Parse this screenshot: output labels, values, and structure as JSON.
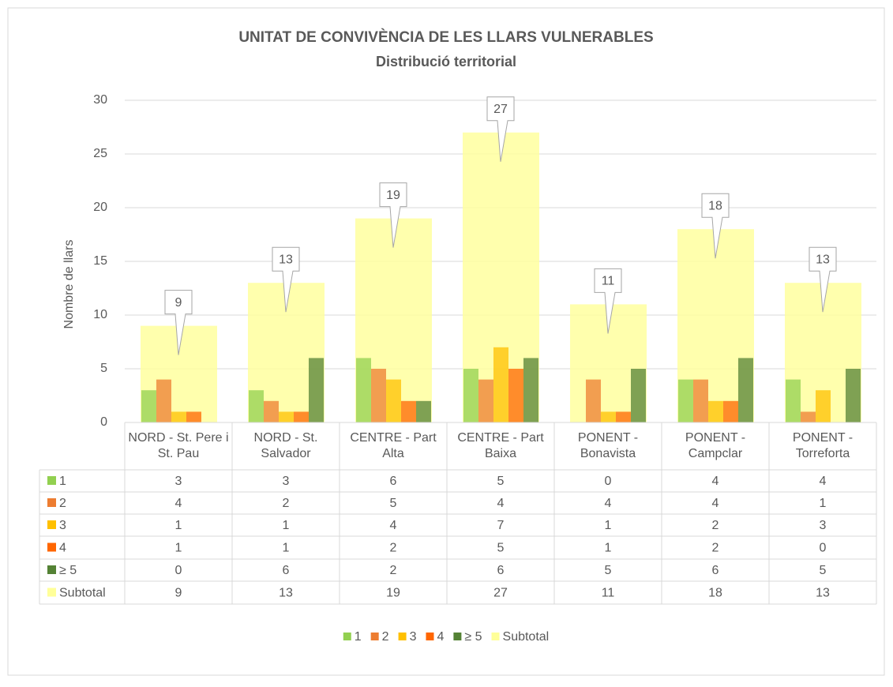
{
  "chart_data": {
    "type": "bar",
    "title": "UNITAT DE CONVIVÈNCIA DE LES LLARS VULNERABLES",
    "subtitle": "Distribució territorial",
    "y_label": "Nombre de llars",
    "categories": [
      "NORD - St. Pere i St. Pau",
      "NORD - St. Salvador",
      "CENTRE - Part Alta",
      "CENTRE - Part Baixa",
      "PONENT - Bonavista",
      "PONENT - Campclar",
      "PONENT - Torreforta"
    ],
    "series": [
      {
        "name": "1",
        "color": "#92d050",
        "values": [
          3,
          3,
          6,
          5,
          0,
          4,
          4
        ]
      },
      {
        "name": "2",
        "color": "#ed7d31",
        "values": [
          4,
          2,
          5,
          4,
          4,
          4,
          1
        ]
      },
      {
        "name": "3",
        "color": "#ffc000",
        "values": [
          1,
          1,
          4,
          7,
          1,
          2,
          3
        ]
      },
      {
        "name": "4",
        "color": "#ff6600",
        "values": [
          1,
          1,
          2,
          5,
          1,
          2,
          0
        ]
      },
      {
        "name": "≥ 5",
        "color": "#548235",
        "values": [
          0,
          6,
          2,
          6,
          5,
          6,
          5
        ]
      },
      {
        "name": "Subtotal",
        "color": "#ffff99",
        "values": [
          9,
          13,
          19,
          27,
          11,
          18,
          13
        ]
      }
    ],
    "ylim": [
      0,
      30
    ],
    "yticks": [
      0,
      5,
      10,
      15,
      20,
      25,
      30
    ],
    "grid": true,
    "legend": "bottom",
    "data_table": true
  }
}
